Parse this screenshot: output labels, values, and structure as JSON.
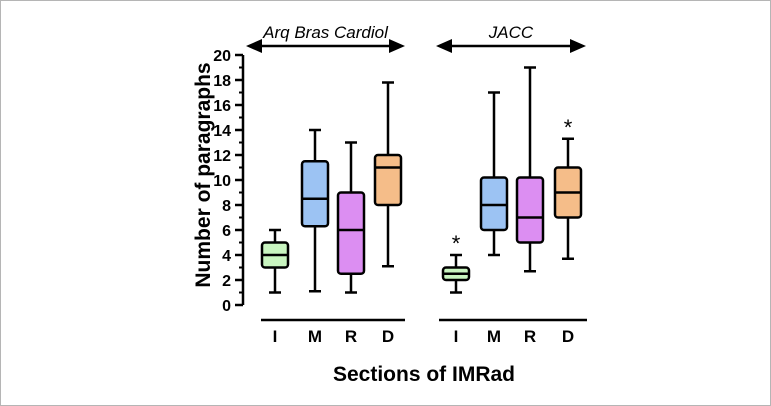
{
  "chart_data": {
    "type": "boxplot",
    "title": "",
    "xlabel": "Sections of IMRad",
    "ylabel": "Number of paragraphs",
    "ylim": [
      0,
      20
    ],
    "yticks": [
      0,
      2,
      4,
      6,
      8,
      10,
      12,
      14,
      16,
      18,
      20
    ],
    "groups": [
      {
        "label": "Arq Bras Cardiol",
        "boxes": [
          {
            "category": "I",
            "color": "#c9f5c0",
            "min": 1,
            "q1": 3,
            "median": 4,
            "q3": 5,
            "max": 6,
            "marker": ""
          },
          {
            "category": "M",
            "color": "#9cc3f3",
            "min": 1.1,
            "q1": 6.3,
            "median": 8.5,
            "q3": 11.5,
            "max": 14,
            "marker": ""
          },
          {
            "category": "R",
            "color": "#dc8ef2",
            "min": 1,
            "q1": 2.5,
            "median": 6,
            "q3": 9,
            "max": 13,
            "marker": ""
          },
          {
            "category": "D",
            "color": "#f5bd89",
            "min": 3.1,
            "q1": 8,
            "median": 11,
            "q3": 12,
            "max": 17.8,
            "marker": ""
          }
        ]
      },
      {
        "label": "JACC",
        "boxes": [
          {
            "category": "I",
            "color": "#c9f5c0",
            "min": 1,
            "q1": 2,
            "median": 2.5,
            "q3": 3,
            "max": 4,
            "marker": "*"
          },
          {
            "category": "M",
            "color": "#9cc3f3",
            "min": 4,
            "q1": 6,
            "median": 8,
            "q3": 10.2,
            "max": 17,
            "marker": ""
          },
          {
            "category": "R",
            "color": "#dc8ef2",
            "min": 2.7,
            "q1": 5,
            "median": 7,
            "q3": 10.2,
            "max": 19,
            "marker": ""
          },
          {
            "category": "D",
            "color": "#f5bd89",
            "min": 3.7,
            "q1": 7,
            "median": 9,
            "q3": 11,
            "max": 13.3,
            "marker": "*"
          }
        ]
      }
    ]
  }
}
